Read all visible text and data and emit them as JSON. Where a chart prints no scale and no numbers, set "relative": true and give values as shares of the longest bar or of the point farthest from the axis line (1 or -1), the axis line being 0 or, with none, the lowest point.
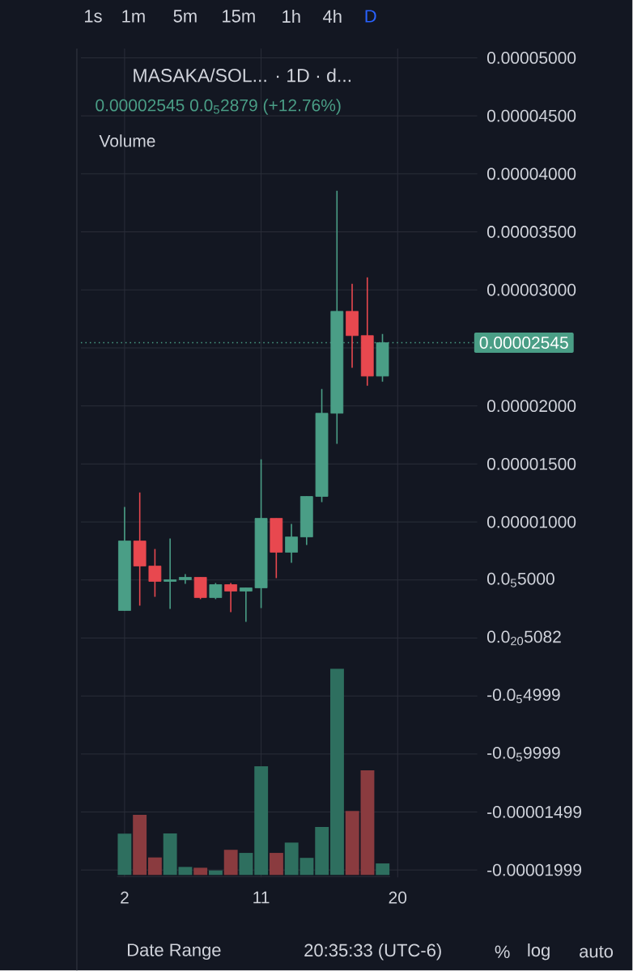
{
  "chart_data": [
    {
      "type": "candlestick",
      "title": "MASAKA/SOL... · 1D · d...",
      "subtitle": "0.00002545 0.0$_{5}$2879 (+12.76%)",
      "x": [
        2,
        3,
        4,
        5,
        6,
        7,
        8,
        9,
        10,
        11,
        12,
        13,
        14,
        15,
        16,
        17,
        18,
        19
      ],
      "ohlc": [
        [
          2.37e-06,
          1.129e-05,
          2.37e-06,
          8.36e-06
        ],
        [
          8.36e-06,
          1.254e-05,
          2.79e-06,
          6.2e-06
        ],
        [
          6.2e-06,
          7.67e-06,
          3.55e-06,
          4.88e-06
        ],
        [
          4.88e-06,
          8.57e-06,
          2.51e-06,
          5.02e-06
        ],
        [
          5.02e-06,
          5.51e-06,
          4.67e-06,
          5.23e-06
        ],
        [
          5.23e-06,
          5.23e-06,
          3.35e-06,
          3.48e-06
        ],
        [
          3.48e-06,
          4.74e-06,
          3.35e-06,
          4.6e-06
        ],
        [
          4.6e-06,
          4.74e-06,
          2.23e-06,
          4.04e-06
        ],
        [
          4.04e-06,
          4.32e-06,
          1.39e-06,
          4.32e-06
        ],
        [
          4.32e-06,
          1.54e-05,
          2.58e-06,
          1.031e-05
        ],
        [
          1.031e-05,
          1.031e-05,
          5.16e-06,
          7.39e-06
        ],
        [
          7.39e-06,
          9.83e-06,
          6.48e-06,
          8.71e-06
        ],
        [
          8.71e-06,
          1.22e-05,
          8.01e-06,
          1.22e-05
        ],
        [
          1.22e-05,
          2.146e-05,
          1.171e-05,
          1.937e-05
        ],
        [
          1.937e-05,
          3.854e-05,
          1.673e-05,
          2.815e-05
        ],
        [
          2.815e-05,
          3.052e-05,
          2.328e-05,
          2.606e-05
        ],
        [
          2.606e-05,
          3.108e-05,
          2.174e-05,
          2.257e-05
        ],
        [
          2.257e-05,
          2.62e-05,
          2.209e-05,
          2.545e-05
        ]
      ],
      "colors": [
        "#4a9e86",
        "#e8484f",
        "#e8484f",
        "#4a9e86",
        "#4a9e86",
        "#e8484f",
        "#4a9e86",
        "#e8484f",
        "#4a9e86",
        "#4a9e86",
        "#e8484f",
        "#4a9e86",
        "#4a9e86",
        "#4a9e86",
        "#4a9e86",
        "#e8484f",
        "#e8484f",
        "#4a9e86"
      ],
      "xlim": [
        -0.88,
        25.25
      ],
      "xticks": [
        2,
        11,
        20
      ],
      "ylim": [
        -2.063e-05,
        5.08e-05
      ],
      "yticks": [
        {
          "value": 5e-05,
          "label": "0.00005000"
        },
        {
          "value": 4.5e-05,
          "label": "0.00004500"
        },
        {
          "value": 4e-05,
          "label": "0.00004000"
        },
        {
          "value": 3.5e-05,
          "label": "0.00003500"
        },
        {
          "value": 3e-05,
          "label": "0.00003000"
        },
        {
          "value": 2.5e-05,
          "label": null
        },
        {
          "value": 2e-05,
          "label": "0.00002000"
        },
        {
          "value": 1.5e-05,
          "label": "0.00001500"
        },
        {
          "value": 1e-05,
          "label": "0.00001000"
        },
        {
          "value": 5e-06,
          "label": "0.0$_{5}$5000"
        },
        {
          "value": 0,
          "label": "0.0$_{20}$5082"
        },
        {
          "value": -4.999e-06,
          "label": "-0.0$_{5}$4999"
        },
        {
          "value": -9.999e-06,
          "label": "-0.0$_{5}$9999"
        },
        {
          "value": -1.499e-05,
          "label": "-0.00001499"
        },
        {
          "value": -1.999e-05,
          "label": "-0.00001999"
        }
      ],
      "grid": true,
      "ref_lines": [
        {
          "axis": "y",
          "value": 2.545e-05,
          "label": "0.00002545",
          "color": "#4a9e86",
          "line_style": "dotted"
        }
      ],
      "annotations": [
        "1s",
        "1m",
        "5m",
        "15m",
        "1h",
        "4h",
        "D",
        "Date Range",
        "20:35:33 (UTC-6)",
        "%",
        "log",
        "auto"
      ]
    },
    {
      "type": "bar",
      "title": "Volume",
      "relative": true,
      "categories": [
        null,
        null,
        null,
        null,
        null,
        null,
        null,
        null,
        null,
        null,
        null,
        null,
        null,
        null,
        null,
        null,
        null,
        null
      ],
      "values": [
        0.2,
        0.292,
        0.085,
        0.201,
        0.039,
        0.035,
        0.022,
        0.122,
        0.107,
        0.527,
        0.107,
        0.157,
        0.083,
        0.233,
        1,
        0.31,
        0.507,
        0.056
      ],
      "colors": [
        "#2e6f5f",
        "#8a3b3f",
        "#8a3b3f",
        "#2e6f5f",
        "#2e6f5f",
        "#8a3b3f",
        "#2e6f5f",
        "#8a3b3f",
        "#2e6f5f",
        "#2e6f5f",
        "#8a3b3f",
        "#2e6f5f",
        "#2e6f5f",
        "#2e6f5f",
        "#2e6f5f",
        "#8a3b3f",
        "#8a3b3f",
        "#2e6f5f"
      ]
    }
  ]
}
